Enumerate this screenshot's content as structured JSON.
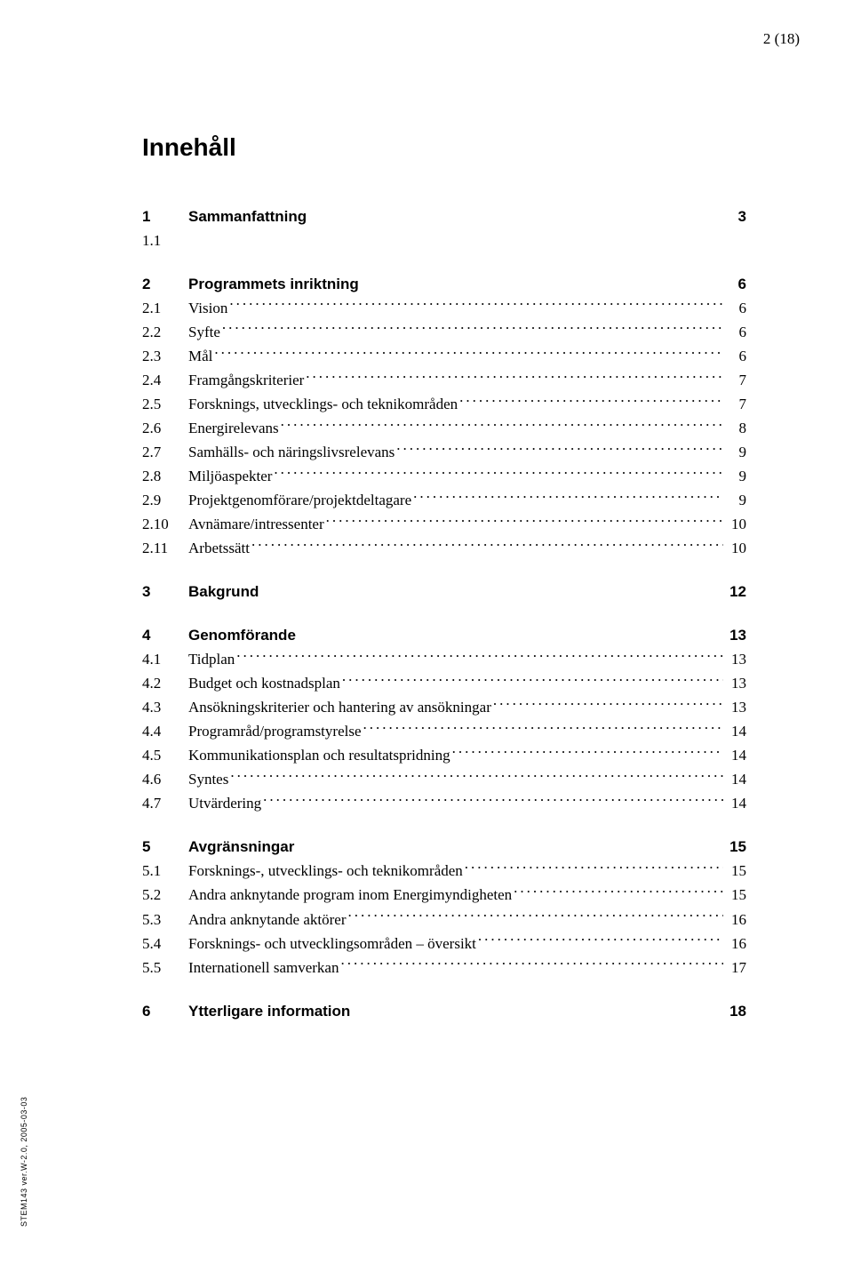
{
  "page_indicator": "2 (18)",
  "toc_title": "Innehåll",
  "side_text": "STEM143 ver.W-2.0, 2005-03-03",
  "sections": [
    {
      "num": "1",
      "label": "Sammanfattning",
      "page": "3",
      "bold": true,
      "leader": false,
      "items": [
        {
          "num": "1.1",
          "label": "",
          "page": "",
          "leader": false
        }
      ]
    },
    {
      "num": "2",
      "label": "Programmets inriktning",
      "page": "6",
      "bold": true,
      "leader": false,
      "items": [
        {
          "num": "2.1",
          "label": "Vision",
          "page": "6",
          "leader": true
        },
        {
          "num": "2.2",
          "label": "Syfte",
          "page": "6",
          "leader": true
        },
        {
          "num": "2.3",
          "label": "Mål",
          "page": "6",
          "leader": true
        },
        {
          "num": "2.4",
          "label": "Framgångskriterier",
          "page": "7",
          "leader": true
        },
        {
          "num": "2.5",
          "label": "Forsknings, utvecklings- och teknikområden",
          "page": "7",
          "leader": true
        },
        {
          "num": "2.6",
          "label": "Energirelevans",
          "page": "8",
          "leader": true
        },
        {
          "num": "2.7",
          "label": "Samhälls- och näringslivsrelevans",
          "page": "9",
          "leader": true
        },
        {
          "num": "2.8",
          "label": "Miljöaspekter",
          "page": "9",
          "leader": true
        },
        {
          "num": "2.9",
          "label": "Projektgenomförare/projektdeltagare",
          "page": "9",
          "leader": true
        },
        {
          "num": "2.10",
          "label": "Avnämare/intressenter",
          "page": "10",
          "leader": true
        },
        {
          "num": "2.11",
          "label": "Arbetssätt",
          "page": "10",
          "leader": true
        }
      ]
    },
    {
      "num": "3",
      "label": "Bakgrund",
      "page": "12",
      "bold": true,
      "leader": false,
      "items": []
    },
    {
      "num": "4",
      "label": "Genomförande",
      "page": "13",
      "bold": true,
      "leader": false,
      "items": [
        {
          "num": "4.1",
          "label": "Tidplan",
          "page": "13",
          "leader": true
        },
        {
          "num": "4.2",
          "label": "Budget och kostnadsplan",
          "page": "13",
          "leader": true
        },
        {
          "num": "4.3",
          "label": "Ansökningskriterier och hantering av ansökningar",
          "page": "13",
          "leader": true
        },
        {
          "num": "4.4",
          "label": "Programråd/programstyrelse",
          "page": "14",
          "leader": true
        },
        {
          "num": "4.5",
          "label": "Kommunikationsplan och resultatspridning",
          "page": "14",
          "leader": true
        },
        {
          "num": "4.6",
          "label": "Syntes",
          "page": "14",
          "leader": true
        },
        {
          "num": "4.7",
          "label": "Utvärdering",
          "page": "14",
          "leader": true
        }
      ]
    },
    {
      "num": "5",
      "label": "Avgränsningar",
      "page": "15",
      "bold": true,
      "leader": false,
      "items": [
        {
          "num": "5.1",
          "label": "Forsknings-, utvecklings- och teknikområden",
          "page": "15",
          "leader": true
        },
        {
          "num": "5.2",
          "label": "Andra anknytande program inom Energimyndigheten",
          "page": "15",
          "leader": true
        },
        {
          "num": "5.3",
          "label": "Andra anknytande aktörer",
          "page": "16",
          "leader": true
        },
        {
          "num": "5.4",
          "label": "Forsknings- och utvecklingsområden – översikt",
          "page": "16",
          "leader": true
        },
        {
          "num": "5.5",
          "label": "Internationell samverkan",
          "page": "17",
          "leader": true
        }
      ]
    },
    {
      "num": "6",
      "label": "Ytterligare information",
      "page": "18",
      "bold": true,
      "leader": false,
      "items": []
    }
  ]
}
